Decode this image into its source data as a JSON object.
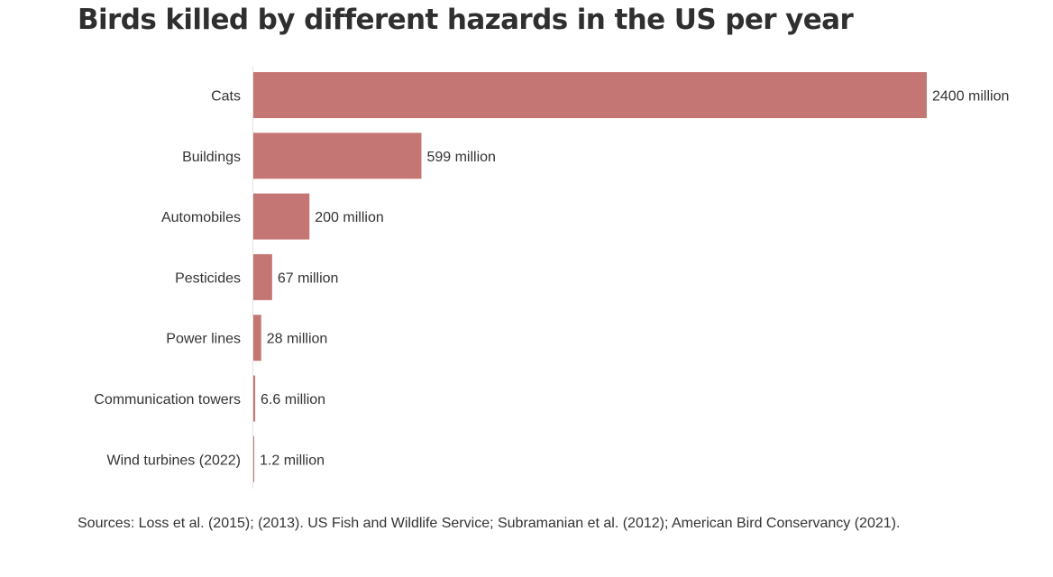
{
  "title": "Birds killed by different hazards in the US per year",
  "source": "Sources: Loss et al. (2015); (2013). US Fish and Wildlife Service; Subramanian et al. (2012); American Bird Conservancy (2021).",
  "colors": {
    "bar": "#c47674",
    "axis": "#e3e3e3",
    "text": "#333333"
  },
  "chart_data": {
    "type": "bar",
    "orientation": "horizontal",
    "categories": [
      "Cats",
      "Buildings",
      "Automobiles",
      "Pesticides",
      "Power lines",
      "Communication towers",
      "Wind turbines (2022)"
    ],
    "values": [
      2400,
      599,
      200,
      67,
      28,
      6.6,
      1.2
    ],
    "value_labels": [
      "2400 million",
      "599 million",
      "200 million",
      "67 million",
      "28 million",
      "6.6 million",
      "1.2 million"
    ],
    "xlim": [
      0,
      2400
    ],
    "grid": false,
    "legend": "none"
  }
}
